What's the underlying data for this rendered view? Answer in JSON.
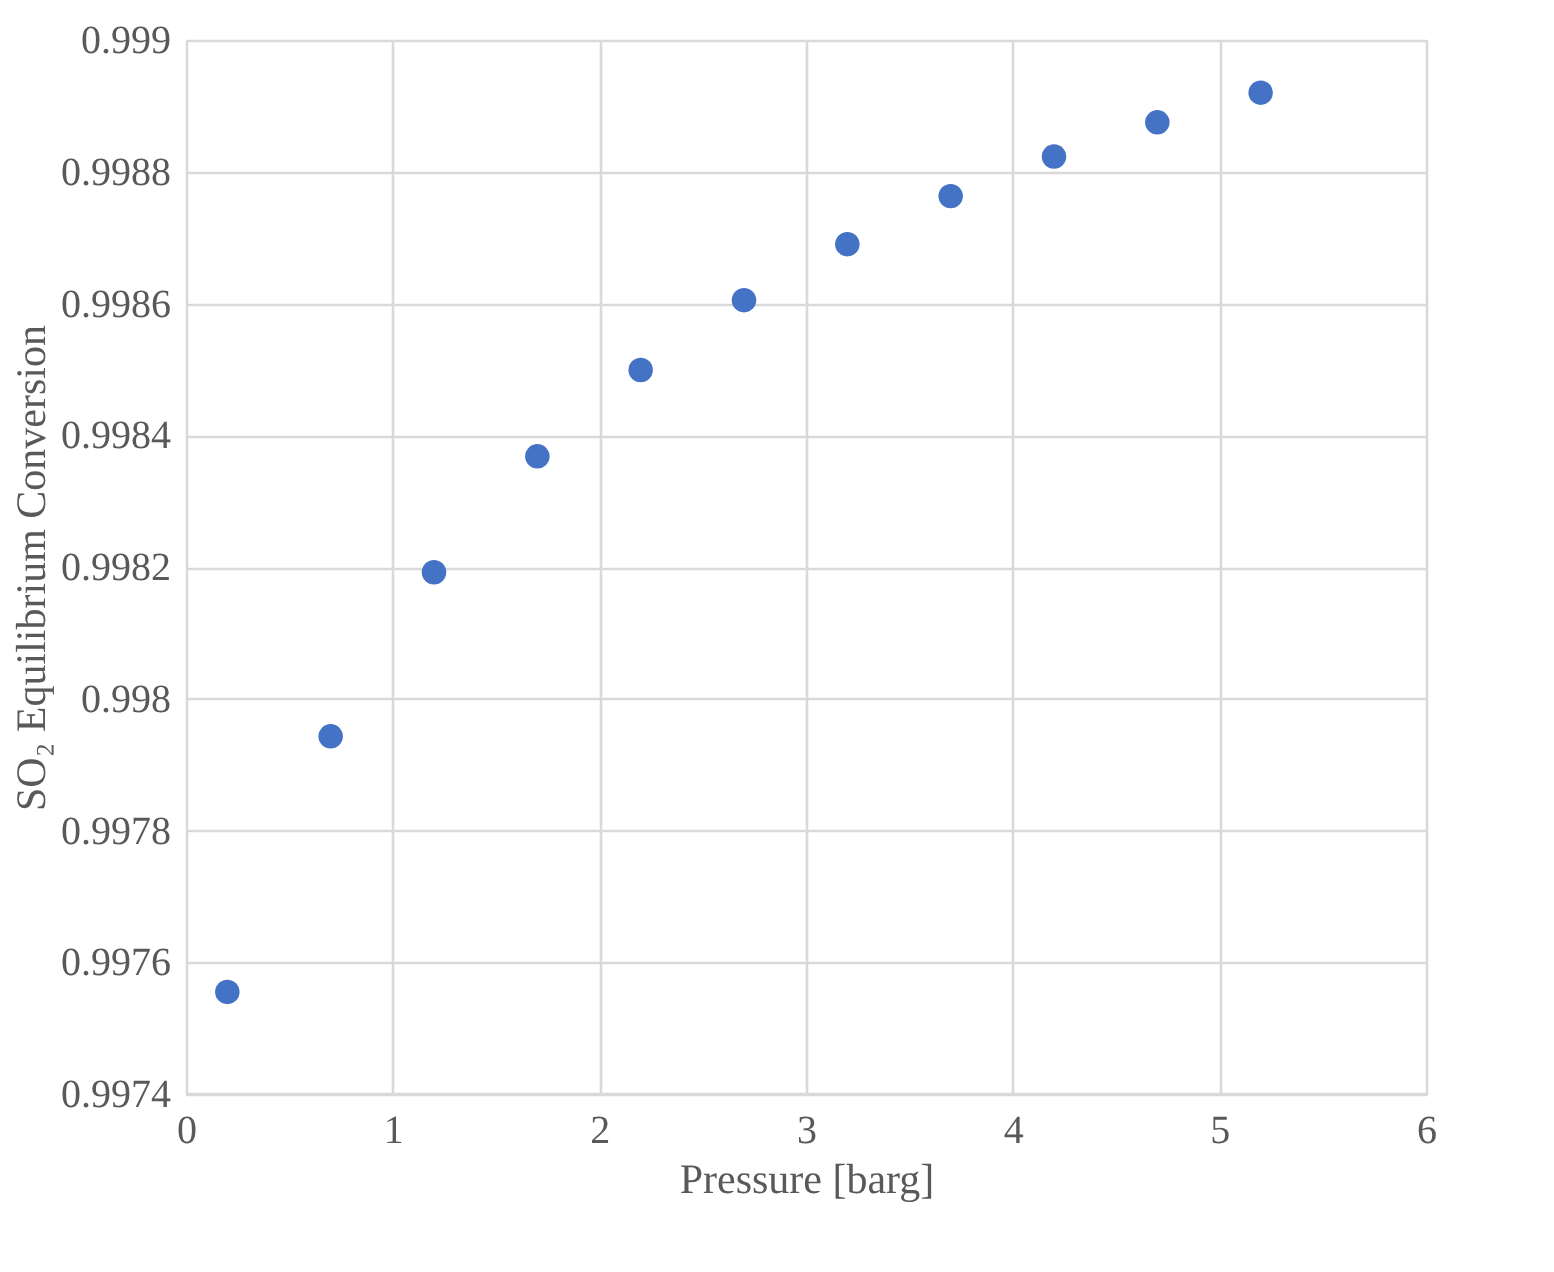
{
  "chart_data": {
    "type": "scatter",
    "xlabel": "Pressure [barg]",
    "ylabel": "SO₂ Equilibrium Conversion",
    "x": [
      0.2,
      0.7,
      1.2,
      1.7,
      2.2,
      2.7,
      3.2,
      3.7,
      4.2,
      4.7,
      5.2
    ],
    "series": [
      {
        "color": "#4472c4",
        "values": [
          0.997555,
          0.997943,
          0.998192,
          0.998368,
          0.998499,
          0.998605,
          0.99869,
          0.998763,
          0.998823,
          0.998875,
          0.99892
        ]
      }
    ],
    "xlim": [
      0,
      6
    ],
    "xticks": [
      0,
      1,
      2,
      3,
      4,
      5,
      6
    ],
    "ylim": [
      0.9974,
      0.999
    ],
    "yticks": [
      0.9974,
      0.9976,
      0.9978,
      0.998,
      0.9982,
      0.9984,
      0.9986,
      0.9988,
      0.999
    ],
    "grid": true,
    "marker": "circle",
    "legend": false
  }
}
